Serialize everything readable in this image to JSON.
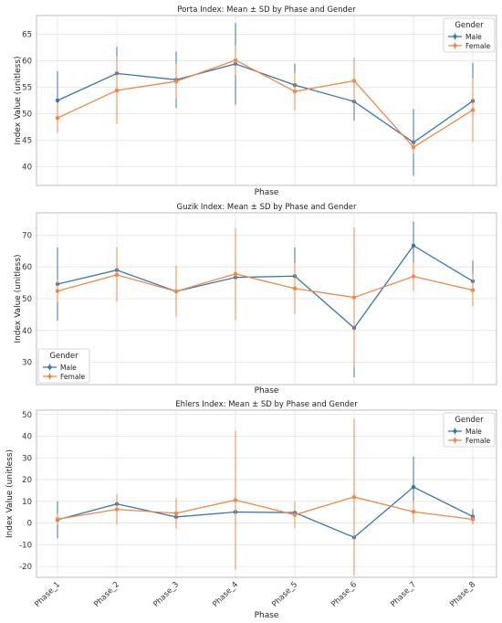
{
  "chart_data": [
    {
      "type": "line",
      "title": "Porta Index: Mean ± SD by Phase and Gender",
      "xlabel": "Phase",
      "ylabel": "Index Value (unitless)",
      "categories": [
        "Phase_1",
        "Phase_2",
        "Phase_3",
        "Phase_4",
        "Phase_5",
        "Phase_6",
        "Phase_7",
        "Phase_8"
      ],
      "show_xticklabels": false,
      "ylim": [
        36.5,
        68.5
      ],
      "yticks": [
        40,
        45,
        50,
        55,
        60,
        65
      ],
      "grid": true,
      "legend": {
        "title": "Gender",
        "placement": "top-right"
      },
      "series": [
        {
          "name": "Male",
          "color": "#3a75ad",
          "values": [
            52.5,
            57.6,
            56.4,
            59.4,
            55.4,
            52.3,
            44.6,
            52.4
          ],
          "sd": [
            5.5,
            5.0,
            5.3,
            7.7,
            4.0,
            3.6,
            6.3,
            7.2
          ]
        },
        {
          "name": "Female",
          "color": "#ef8848",
          "values": [
            49.2,
            54.4,
            56.1,
            60.1,
            54.2,
            56.2,
            43.7,
            50.7
          ],
          "sd": [
            2.8,
            6.4,
            3.3,
            2.8,
            3.6,
            4.4,
            1.2,
            6.0
          ]
        }
      ]
    },
    {
      "type": "line",
      "title": "Guzik Index: Mean ± SD by Phase and Gender",
      "xlabel": "Phase",
      "ylabel": "Index Value (unitless)",
      "categories": [
        "Phase_1",
        "Phase_2",
        "Phase_3",
        "Phase_4",
        "Phase_5",
        "Phase_6",
        "Phase_7",
        "Phase_8"
      ],
      "show_xticklabels": false,
      "ylim": [
        23,
        77
      ],
      "yticks": [
        30,
        40,
        50,
        60,
        70
      ],
      "grid": true,
      "legend": {
        "title": "Gender",
        "placement": "bottom-left"
      },
      "series": [
        {
          "name": "Male",
          "color": "#3a75ad",
          "values": [
            54.6,
            59.0,
            52.3,
            56.7,
            57.1,
            40.8,
            66.7,
            55.5
          ],
          "sd": [
            11.5,
            7.0,
            7.5,
            13.0,
            9.0,
            15.5,
            7.5,
            6.5
          ]
        },
        {
          "name": "Female",
          "color": "#ef8848",
          "values": [
            52.4,
            57.5,
            52.3,
            57.8,
            53.2,
            50.4,
            57.0,
            52.7
          ],
          "sd": [
            3.5,
            8.5,
            8.0,
            14.5,
            8.0,
            22.0,
            4.5,
            5.0
          ]
        }
      ]
    },
    {
      "type": "line",
      "title": "Ehlers Index: Mean ± SD by Phase and Gender",
      "xlabel": "Phase",
      "ylabel": "Index Value (unitless)",
      "categories": [
        "Phase_1",
        "Phase_2",
        "Phase_3",
        "Phase_4",
        "Phase_5",
        "Phase_6",
        "Phase_7",
        "Phase_8"
      ],
      "show_xticklabels": true,
      "ylim": [
        -25,
        52
      ],
      "yticks": [
        -20,
        -10,
        0,
        10,
        20,
        30,
        40,
        50
      ],
      "grid": true,
      "legend": {
        "title": "Gender",
        "placement": "top-right"
      },
      "series": [
        {
          "name": "Male",
          "color": "#3a75ad",
          "values": [
            1.5,
            8.8,
            2.8,
            5.1,
            4.8,
            -6.6,
            16.6,
            3.0
          ],
          "sd": [
            8.5,
            3.5,
            4.0,
            4.5,
            5.0,
            6.0,
            14.0,
            3.5
          ]
        },
        {
          "name": "Female",
          "color": "#ef8848",
          "values": [
            1.8,
            6.3,
            4.5,
            10.6,
            3.8,
            12.0,
            5.2,
            1.7
          ],
          "sd": [
            2.5,
            7.0,
            7.0,
            32.0,
            6.0,
            36.0,
            5.0,
            2.0
          ]
        }
      ]
    }
  ]
}
